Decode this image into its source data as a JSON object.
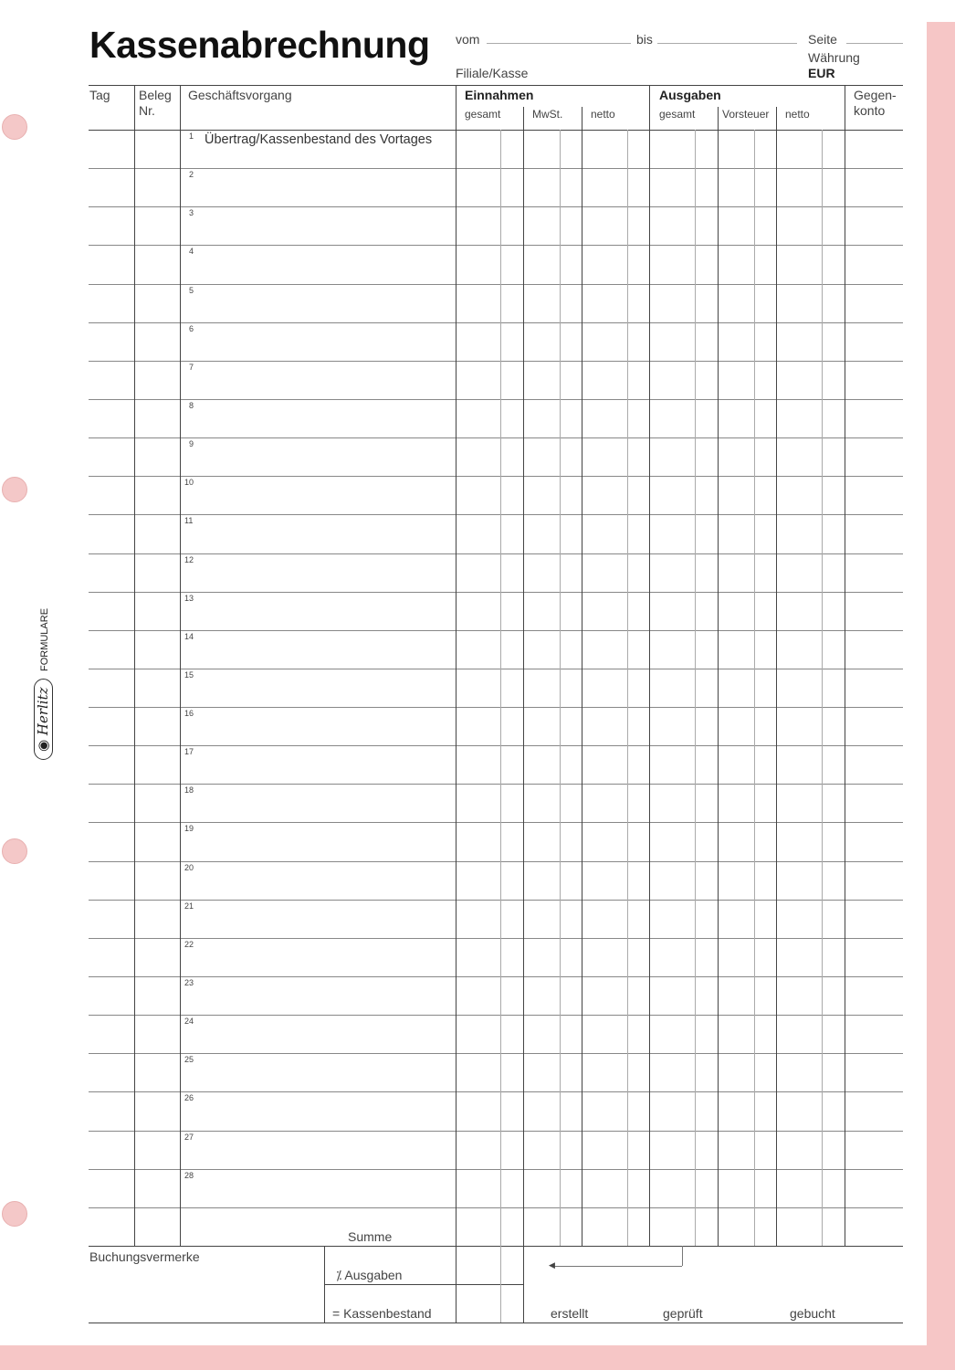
{
  "title": "Kassenabrechnung",
  "header": {
    "vom": "vom",
    "bis": "bis",
    "seite": "Seite",
    "filiale": "Filiale/Kasse",
    "waehrung": "Währung",
    "currency": "EUR"
  },
  "columns": {
    "tag": "Tag",
    "beleg": "Beleg",
    "beleg_nr": "Nr.",
    "vorgang": "Geschäftsvorgang",
    "einnahmen": "Einnahmen",
    "ein_gesamt": "gesamt",
    "ein_mwst": "MwSt.",
    "ein_netto": "netto",
    "ausgaben": "Ausgaben",
    "aus_gesamt": "gesamt",
    "aus_vorsteuer": "Vorsteuer",
    "aus_netto": "netto",
    "gegenkonto_1": "Gegen-",
    "gegenkonto_2": "konto"
  },
  "rows": [
    "1",
    "2",
    "3",
    "4",
    "5",
    "6",
    "7",
    "8",
    "9",
    "10",
    "11",
    "12",
    "13",
    "14",
    "15",
    "16",
    "17",
    "18",
    "19",
    "20",
    "21",
    "22",
    "23",
    "24",
    "25",
    "26",
    "27",
    "28"
  ],
  "first_row_text": "Übertrag/Kassenbestand des Vortages",
  "footer": {
    "summe": "Summe",
    "buchungsvermerke": "Buchungsvermerke",
    "ausgaben": "⁒ Ausgaben",
    "kassenbestand": "= Kassenbestand",
    "erstellt": "erstellt",
    "geprueft": "geprüft",
    "gebucht": "gebucht"
  },
  "brand": {
    "logo": "Herlitz",
    "label": "FORMULARE"
  },
  "colors": {
    "accent": "#f6c6c6"
  }
}
